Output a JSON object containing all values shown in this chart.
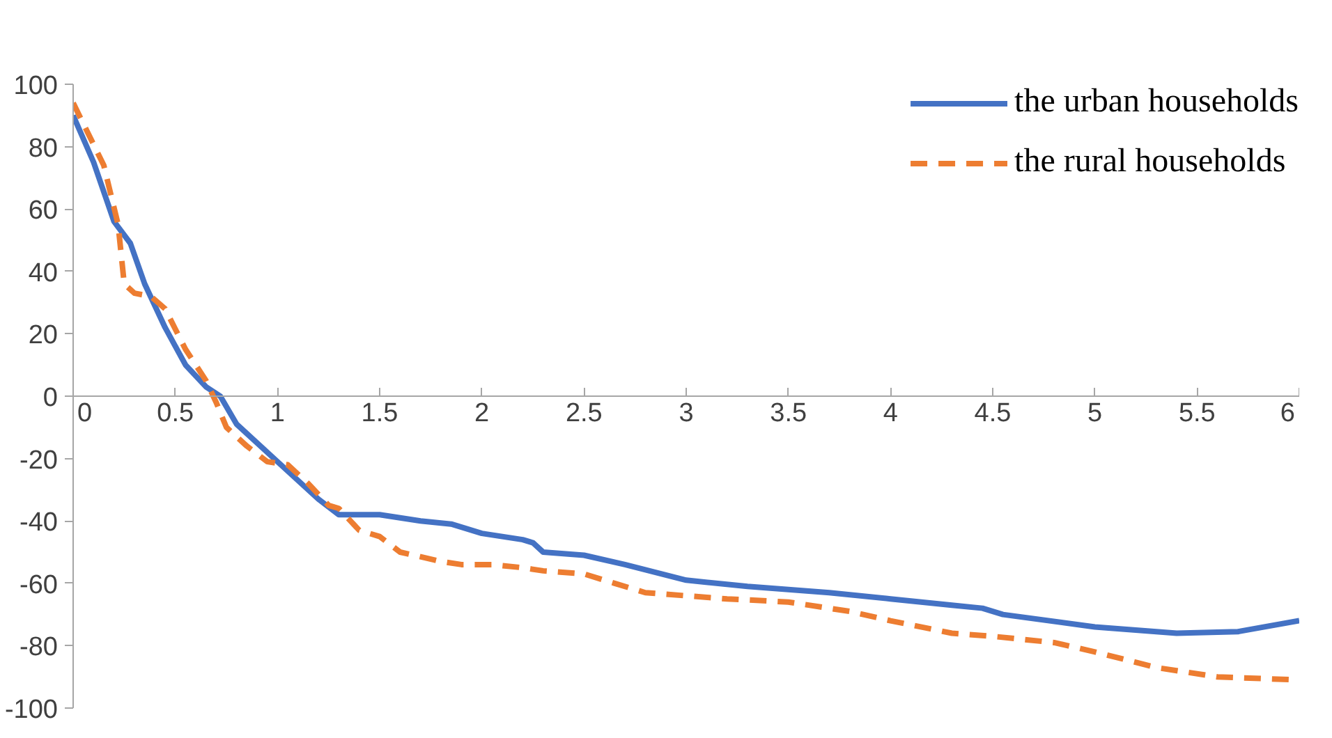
{
  "chart_data": {
    "type": "line",
    "xlim": [
      0,
      6
    ],
    "ylim": [
      -100,
      100
    ],
    "xticks": [
      0,
      0.5,
      1,
      1.5,
      2,
      2.5,
      3,
      3.5,
      4,
      4.5,
      5,
      5.5,
      6
    ],
    "yticks": [
      -100,
      -80,
      -60,
      -40,
      -20,
      0,
      20,
      40,
      60,
      80,
      100
    ],
    "grid": false,
    "legend": "top right",
    "series": [
      {
        "name": "the urban households",
        "color": "#4472c4",
        "line_style": "solid",
        "x": [
          0,
          0.1,
          0.2,
          0.28,
          0.35,
          0.45,
          0.55,
          0.65,
          0.72,
          0.8,
          1,
          1.2,
          1.3,
          1.5,
          1.7,
          1.85,
          2,
          2.2,
          2.25,
          2.3,
          2.5,
          2.7,
          3,
          3.3,
          3.7,
          4,
          4.3,
          4.45,
          4.55,
          5,
          5.4,
          5.7,
          6
        ],
        "values": [
          90,
          75,
          56,
          49,
          36,
          22,
          10,
          3,
          0,
          -9,
          -21,
          -33,
          -38,
          -38,
          -40,
          -41,
          -44,
          -46,
          -47,
          -50,
          -51,
          -54,
          -59,
          -61,
          -63,
          -65,
          -67,
          -68,
          -70,
          -74,
          -76,
          -75.5,
          -72
        ]
      },
      {
        "name": "the rural households",
        "color": "#ed7d31",
        "line_style": "dashed",
        "x": [
          0,
          0.15,
          0.22,
          0.25,
          0.3,
          0.38,
          0.45,
          0.55,
          0.65,
          0.7,
          0.75,
          0.85,
          0.95,
          1.05,
          1.15,
          1.25,
          1.3,
          1.4,
          1.5,
          1.6,
          1.8,
          1.9,
          2.05,
          2.2,
          2.3,
          2.5,
          2.65,
          2.8,
          3,
          3.2,
          3.5,
          3.8,
          4,
          4.3,
          4.5,
          4.8,
          5,
          5.3,
          5.6,
          6
        ],
        "values": [
          94,
          74,
          55,
          36,
          33,
          32,
          28,
          15,
          5,
          -2,
          -10,
          -16,
          -21,
          -22,
          -28,
          -35,
          -36,
          -43,
          -45,
          -50,
          -53,
          -54,
          -54,
          -55,
          -56,
          -57,
          -60,
          -63,
          -64,
          -65,
          -66,
          -69,
          -72,
          -76,
          -77,
          -79,
          -82,
          -87,
          -90,
          -91
        ]
      }
    ]
  }
}
